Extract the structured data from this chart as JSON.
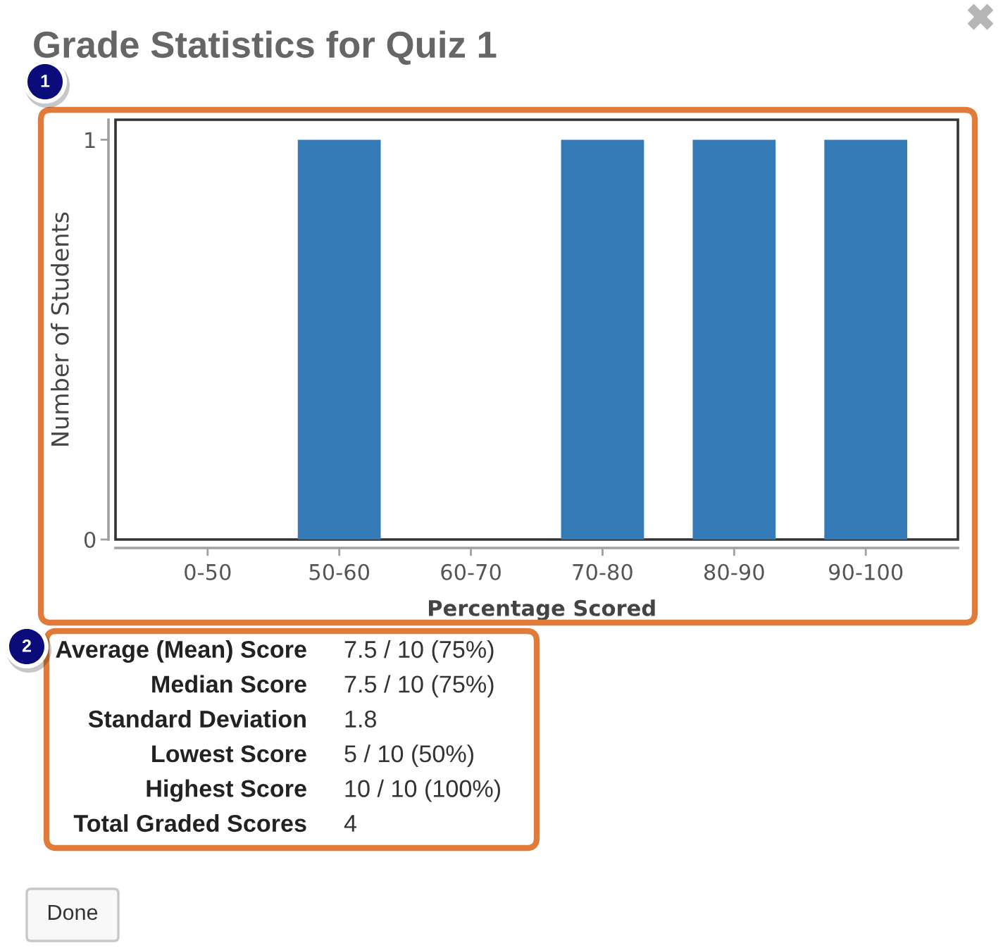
{
  "chart_data": [
    {
      "type": "bar",
      "title": "Grade Statistics for Quiz 1",
      "categories": [
        "0-50",
        "50-60",
        "60-70",
        "70-80",
        "80-90",
        "90-100"
      ],
      "values": [
        0,
        1,
        0,
        1,
        1,
        1
      ],
      "color": "#337ab7",
      "xlabel": "Percentage Scored",
      "ylabel": "Number of Students",
      "ylim": [
        0,
        1.05
      ],
      "yticks": [
        0,
        1
      ],
      "annotations": [
        "1"
      ]
    },
    {
      "type": "other",
      "annotations": [
        "2",
        "Average (Mean) Score",
        "7.5 / 10 (75%)",
        "Median Score",
        "7.5 / 10 (75%)",
        "Standard Deviation",
        "1.8",
        "Lowest Score",
        "5 / 10 (50%)",
        "Highest Score",
        "10 / 10 (100%)",
        "Total Graded Scores",
        "4",
        "Done"
      ]
    }
  ]
}
